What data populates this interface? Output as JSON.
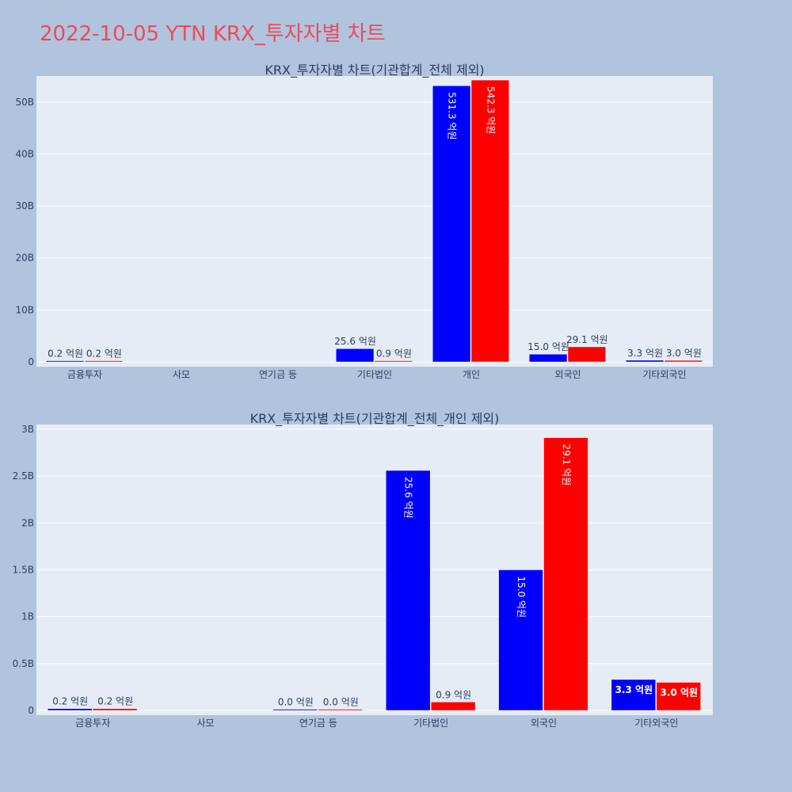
{
  "page": {
    "title": "2022-10-05 YTN KRX_투자자별 차트"
  },
  "colors": {
    "buy": "#0000ff",
    "sell": "#ff0000",
    "plot_bg": "#e5ecf6",
    "page_bg": "#b0c4de",
    "title": "#ef4a5a",
    "axis_text": "#2a3f5f"
  },
  "chart_data": [
    {
      "type": "bar",
      "title": "KRX_투자자별 차트(기관합계_전체 제외)",
      "categories": [
        "금융투자",
        "사모",
        "연기금 등",
        "기타법인",
        "개인",
        "외국인",
        "기타외국인"
      ],
      "ylim": [
        0,
        55000000000
      ],
      "yticks": [
        0,
        10000000000,
        20000000000,
        30000000000,
        40000000000,
        50000000000
      ],
      "ytick_labels": [
        "0",
        "10B",
        "20B",
        "30B",
        "40B",
        "50B"
      ],
      "grid": true,
      "series": [
        {
          "color": "#0000ff",
          "values": [
            20000000,
            null,
            null,
            2560000000,
            53130000000,
            1500000000,
            330000000
          ],
          "labels": [
            "0.2 억원",
            "",
            "",
            "25.6 억원",
            "531.3 억원",
            "15.0 억원",
            "3.3 억원"
          ]
        },
        {
          "color": "#ff0000",
          "values": [
            20000000,
            null,
            null,
            90000000,
            54230000000,
            2910000000,
            300000000
          ],
          "labels": [
            "0.2 억원",
            "",
            "",
            "0.9 억원",
            "542.3 억원",
            "29.1 억원",
            "3.0 억원"
          ]
        }
      ]
    },
    {
      "type": "bar",
      "title": "KRX_투자자별 차트(기관합계_전체_개인 제외)",
      "categories": [
        "금융투자",
        "사모",
        "연기금 등",
        "기타법인",
        "외국인",
        "기타외국인"
      ],
      "ylim": [
        0,
        3050000000
      ],
      "yticks": [
        0,
        500000000,
        1000000000,
        1500000000,
        2000000000,
        2500000000,
        3000000000
      ],
      "ytick_labels": [
        "0",
        "0.5B",
        "1B",
        "1.5B",
        "2B",
        "2.5B",
        "3B"
      ],
      "grid": true,
      "series": [
        {
          "color": "#0000ff",
          "values": [
            20000000,
            null,
            0,
            2560000000,
            1500000000,
            330000000
          ],
          "labels": [
            "0.2 억원",
            "",
            "0.0 억원",
            "25.6 억원",
            "15.0 억원",
            "3.3 억원"
          ]
        },
        {
          "color": "#ff0000",
          "values": [
            20000000,
            null,
            0,
            90000000,
            2910000000,
            300000000
          ],
          "labels": [
            "0.2 억원",
            "",
            "0.0 억원",
            "0.9 억원",
            "29.1 억원",
            "3.0 억원"
          ]
        }
      ]
    }
  ]
}
